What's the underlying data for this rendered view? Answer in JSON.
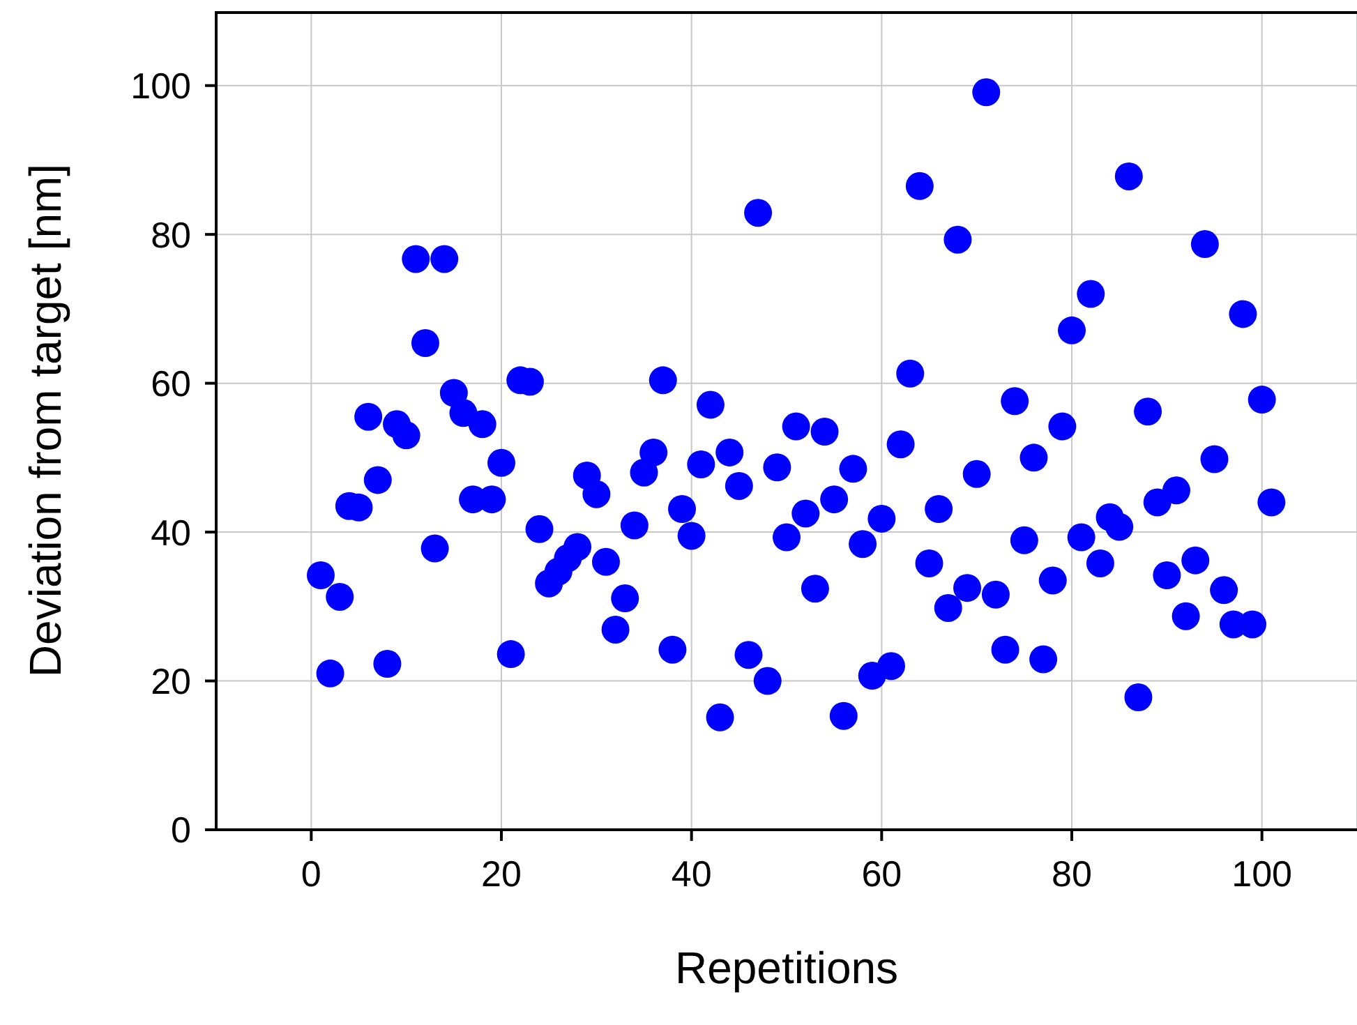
{
  "chart_data": {
    "type": "scatter",
    "xlabel": "Repetitions",
    "ylabel": "Deviation from target [nm]",
    "xlim": [
      -10,
      110
    ],
    "xticks": [
      0,
      20,
      40,
      60,
      80,
      100
    ],
    "ylim": [
      0,
      110
    ],
    "yticks": [
      0,
      20,
      40,
      60,
      80,
      100
    ],
    "grid": true,
    "marker": "circle",
    "series": [
      {
        "color": "#0000ff",
        "x": [
          1,
          2,
          3,
          4,
          5,
          6,
          7,
          8,
          9,
          10,
          11,
          12,
          13,
          14,
          15,
          16,
          17,
          18,
          19,
          20,
          21,
          22,
          23,
          24,
          25,
          26,
          27,
          28,
          29,
          30,
          31,
          32,
          33,
          34,
          35,
          36,
          37,
          38,
          39,
          40,
          41,
          42,
          43,
          44,
          45,
          46,
          47,
          48,
          49,
          50,
          51,
          52,
          53,
          54,
          55,
          56,
          57,
          58,
          59,
          60,
          61,
          62,
          63,
          64,
          65,
          66,
          67,
          68,
          69,
          70,
          71,
          72,
          73,
          74,
          75,
          76,
          77,
          78,
          79,
          80,
          81,
          82,
          83,
          84,
          85,
          86,
          87,
          88,
          89,
          90,
          91,
          92,
          93,
          94,
          95,
          96,
          97,
          98,
          99,
          100,
          101
        ],
        "values": [
          34.2,
          21,
          31.3,
          43.5,
          43.3,
          55.5,
          47,
          22.3,
          54.5,
          53,
          76.7,
          65.4,
          37.8,
          76.7,
          58.7,
          56,
          44.4,
          54.5,
          44.4,
          49.3,
          23.6,
          60.4,
          60.2,
          40.4,
          33.1,
          34.7,
          36.5,
          38,
          47.6,
          45.1,
          36,
          26.9,
          31.1,
          40.9,
          48,
          50.7,
          60.4,
          24.2,
          43.1,
          39.5,
          49.1,
          57.1,
          15.1,
          50.7,
          46.2,
          23.5,
          82.9,
          20,
          48.7,
          39.3,
          54.2,
          42.5,
          32.4,
          53.5,
          44.4,
          15.3,
          48.5,
          38.4,
          20.7,
          41.8,
          22,
          51.8,
          61.3,
          86.5,
          35.8,
          43.1,
          29.8,
          79.3,
          32.5,
          47.8,
          99.1,
          31.6,
          24.2,
          57.6,
          38.9,
          50,
          22.9,
          33.5,
          54.2,
          67.1,
          39.3,
          72,
          35.8,
          42,
          40.7,
          87.8,
          17.8,
          56.2,
          44,
          34.2,
          45.6,
          28.7,
          36.2,
          78.7,
          49.8,
          32.2,
          27.6,
          69.3,
          27.6,
          57.8,
          44
        ]
      }
    ]
  }
}
